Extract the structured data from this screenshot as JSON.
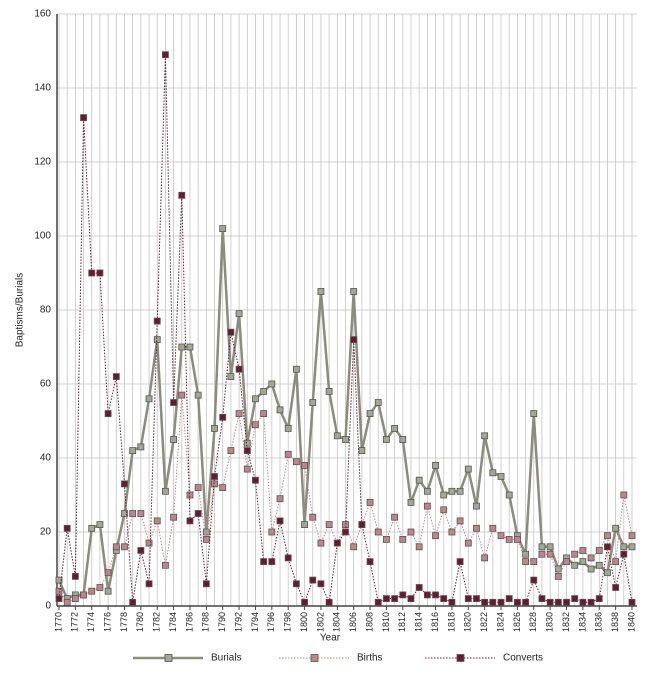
{
  "chart_data": {
    "type": "line",
    "x_label": "Year",
    "y_label": "Baptisms/Burials",
    "x": [
      1770,
      1771,
      1772,
      1773,
      1774,
      1775,
      1776,
      1777,
      1778,
      1779,
      1780,
      1781,
      1782,
      1783,
      1784,
      1785,
      1786,
      1787,
      1788,
      1789,
      1790,
      1791,
      1792,
      1793,
      1794,
      1795,
      1796,
      1797,
      1798,
      1799,
      1800,
      1801,
      1802,
      1803,
      1804,
      1805,
      1806,
      1807,
      1808,
      1809,
      1810,
      1811,
      1812,
      1813,
      1814,
      1815,
      1816,
      1817,
      1818,
      1819,
      1820,
      1821,
      1822,
      1823,
      1824,
      1825,
      1826,
      1827,
      1828,
      1829,
      1830,
      1831,
      1832,
      1833,
      1834,
      1835,
      1836,
      1837,
      1838,
      1839,
      1840
    ],
    "xlim": [
      1770,
      1840
    ],
    "xticks": [
      1770,
      1772,
      1774,
      1776,
      1778,
      1780,
      1782,
      1784,
      1786,
      1788,
      1790,
      1792,
      1794,
      1796,
      1798,
      1800,
      1802,
      1804,
      1806,
      1808,
      1810,
      1812,
      1814,
      1816,
      1818,
      1820,
      1822,
      1824,
      1826,
      1828,
      1830,
      1832,
      1834,
      1836,
      1838,
      1840
    ],
    "ylim": [
      0,
      160
    ],
    "yticks": [
      0,
      20,
      40,
      60,
      80,
      100,
      120,
      140,
      160
    ],
    "grid": true,
    "legend": "bottom",
    "series": [
      {
        "name": "Burials",
        "color": "#8c8c7c",
        "style": "solid",
        "values": [
          7,
          2,
          3,
          3,
          21,
          22,
          4,
          15,
          25,
          42,
          43,
          56,
          72,
          31,
          45,
          70,
          70,
          57,
          20,
          48,
          102,
          62,
          79,
          44,
          56,
          58,
          60,
          53,
          48,
          64,
          22,
          55,
          85,
          58,
          46,
          45,
          85,
          42,
          52,
          55,
          45,
          48,
          45,
          28,
          34,
          31,
          38,
          30,
          31,
          31,
          37,
          27,
          46,
          36,
          35,
          30,
          19,
          14,
          52,
          16,
          16,
          10,
          13,
          11,
          12,
          10,
          11,
          9,
          21,
          16,
          16
        ]
      },
      {
        "name": "Births",
        "color": "#c0848c",
        "style": "dotted",
        "values": [
          4,
          1,
          2,
          3,
          4,
          5,
          9,
          16,
          16,
          25,
          25,
          17,
          23,
          11,
          24,
          57,
          30,
          32,
          18,
          33,
          32,
          42,
          52,
          37,
          49,
          52,
          20,
          29,
          41,
          39,
          38,
          24,
          17,
          22,
          17,
          22,
          16,
          22,
          28,
          20,
          18,
          24,
          18,
          20,
          16,
          27,
          19,
          26,
          20,
          23,
          17,
          21,
          13,
          21,
          19,
          18,
          18,
          12,
          12,
          14,
          14,
          8,
          12,
          14,
          15,
          13,
          15,
          19,
          12,
          30,
          19
        ]
      },
      {
        "name": "Converts",
        "color": "#6a1a30",
        "style": "dotted",
        "values": [
          2,
          21,
          8,
          132,
          90,
          90,
          52,
          62,
          33,
          1,
          15,
          6,
          77,
          149,
          55,
          111,
          23,
          25,
          6,
          35,
          51,
          74,
          64,
          42,
          34,
          12,
          12,
          23,
          13,
          6,
          1,
          7,
          6,
          1,
          17,
          20,
          72,
          22,
          12,
          1,
          2,
          2,
          3,
          2,
          5,
          3,
          3,
          2,
          1,
          12,
          2,
          2,
          1,
          1,
          1,
          2,
          1,
          1,
          7,
          2,
          1,
          1,
          1,
          2,
          1,
          1,
          2,
          16,
          5,
          14,
          1
        ]
      }
    ]
  }
}
